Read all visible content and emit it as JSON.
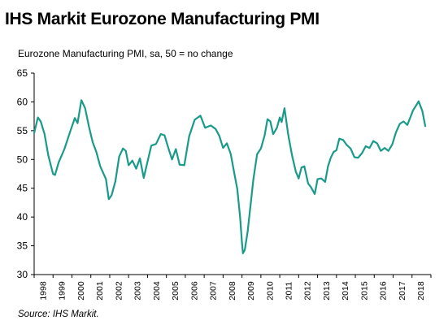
{
  "title": "IHS Markit Eurozone Manufacturing PMI",
  "subtitle": "Eurozone Manufacturing PMI, sa, 50 = no change",
  "source": "Source: IHS Markit.",
  "chart_data": {
    "type": "line",
    "line_color": "#1a9a8a",
    "grid": false,
    "ylim": [
      30,
      65
    ],
    "yticks": [
      30,
      35,
      40,
      45,
      50,
      55,
      60,
      65
    ],
    "xlim": [
      1998,
      2019
    ],
    "xticks": [
      "1998",
      "1999",
      "2000",
      "2001",
      "2002",
      "2003",
      "2004",
      "2005",
      "2006",
      "2007",
      "2008",
      "2009",
      "2010",
      "2011",
      "2012",
      "2013",
      "2014",
      "2015",
      "2016",
      "2017",
      "2018"
    ],
    "series": [
      {
        "x": [
          1998.0,
          1998.2,
          1998.35,
          1998.55,
          1998.75,
          1999.0,
          1999.1,
          1999.3,
          1999.6,
          1999.9,
          2000.15,
          2000.3,
          2000.5,
          2000.7,
          2000.9,
          2001.1,
          2001.3,
          2001.5,
          2001.8,
          2001.95,
          2002.1,
          2002.3,
          2002.5,
          2002.7,
          2002.85,
          2003.0,
          2003.2,
          2003.4,
          2003.6,
          2003.8,
          2004.0,
          2004.2,
          2004.45,
          2004.7,
          2004.9,
          2005.1,
          2005.3,
          2005.5,
          2005.7,
          2005.95,
          2006.2,
          2006.5,
          2006.8,
          2007.05,
          2007.35,
          2007.6,
          2007.8,
          2008.0,
          2008.2,
          2008.4,
          2008.6,
          2008.75,
          2008.9,
          2009.0,
          2009.05,
          2009.15,
          2009.3,
          2009.45,
          2009.6,
          2009.8,
          2010.0,
          2010.2,
          2010.35,
          2010.5,
          2010.65,
          2010.85,
          2011.0,
          2011.1,
          2011.25,
          2011.45,
          2011.65,
          2011.85,
          2012.0,
          2012.15,
          2012.3,
          2012.5,
          2012.65,
          2012.85,
          2013.0,
          2013.2,
          2013.4,
          2013.55,
          2013.7,
          2013.85,
          2014.0,
          2014.15,
          2014.35,
          2014.55,
          2014.75,
          2014.95,
          2015.15,
          2015.35,
          2015.55,
          2015.75,
          2015.95,
          2016.15,
          2016.35,
          2016.55,
          2016.75,
          2016.95,
          2017.15,
          2017.35,
          2017.55,
          2017.75,
          2017.92,
          2018.05,
          2018.2,
          2018.35,
          2018.55,
          2018.7
        ],
        "values": [
          54.6,
          57.3,
          56.6,
          54.4,
          50.7,
          47.5,
          47.3,
          49.5,
          51.8,
          54.8,
          57.2,
          56.3,
          60.3,
          58.9,
          55.7,
          53.0,
          51.2,
          48.8,
          46.6,
          43.1,
          43.8,
          46.2,
          50.5,
          51.9,
          51.5,
          49.0,
          49.8,
          48.4,
          50.2,
          46.8,
          49.6,
          52.4,
          52.7,
          54.4,
          54.2,
          52.0,
          50.0,
          51.8,
          49.1,
          49.0,
          54.0,
          56.9,
          57.6,
          55.5,
          55.9,
          55.3,
          54.1,
          52.0,
          52.8,
          51.0,
          47.5,
          44.9,
          40.0,
          35.5,
          33.7,
          34.3,
          37.5,
          42.0,
          46.5,
          50.9,
          51.9,
          54.2,
          57.0,
          56.6,
          54.4,
          55.5,
          57.3,
          56.5,
          58.9,
          54.2,
          50.7,
          47.9,
          46.7,
          48.6,
          48.8,
          45.8,
          45.2,
          44.0,
          46.6,
          46.7,
          46.1,
          48.8,
          50.3,
          51.3,
          51.6,
          53.6,
          53.4,
          52.5,
          51.9,
          50.4,
          50.3,
          51.1,
          52.3,
          52.0,
          53.2,
          52.8,
          51.5,
          52.0,
          51.5,
          52.6,
          54.7,
          56.2,
          56.6,
          56.0,
          57.4,
          58.5,
          59.3,
          60.1,
          58.4,
          55.8
        ]
      }
    ]
  }
}
